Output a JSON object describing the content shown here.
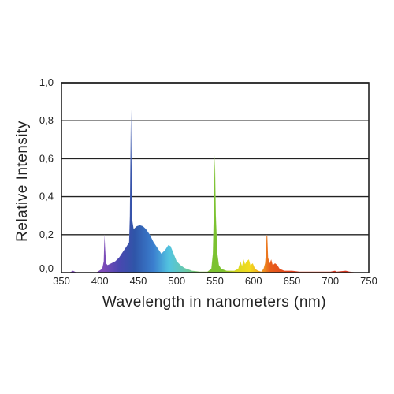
{
  "chart_data": {
    "type": "area",
    "title": "",
    "xlabel": "Wavelength in nanometers (nm)",
    "ylabel": "Relative  Intensity",
    "xlim": [
      350,
      750
    ],
    "ylim": [
      0,
      1.0
    ],
    "x_ticks": [
      "350",
      "400",
      "450",
      "500",
      "550",
      "600",
      "650",
      "700",
      "750"
    ],
    "y_ticks": [
      "0,0",
      "0,2",
      "0,4",
      "0,6",
      "0,8",
      "1,0"
    ],
    "grid": "horizontal",
    "legend": "none",
    "colors": {
      "violet": "#7d4bb8",
      "blue": "#2f55a8",
      "cyan": "#52c4e0",
      "green": "#7cc230",
      "yellow": "#f3dc1e",
      "orange": "#e85d1a",
      "grid": "#222222"
    },
    "series": [
      {
        "values": [
          [
            350,
            0
          ],
          [
            360,
            0
          ],
          [
            365,
            0.01
          ],
          [
            370,
            0
          ],
          [
            395,
            0
          ],
          [
            403,
            0.02
          ],
          [
            405,
            0.06
          ],
          [
            406,
            0.2
          ],
          [
            407,
            0.12
          ],
          [
            408,
            0.05
          ],
          [
            410,
            0.04
          ],
          [
            415,
            0.05
          ],
          [
            420,
            0.06
          ],
          [
            425,
            0.08
          ],
          [
            430,
            0.11
          ],
          [
            435,
            0.14
          ],
          [
            438,
            0.16
          ],
          [
            439,
            0.3
          ],
          [
            440,
            0.7
          ],
          [
            440.5,
            0.86
          ],
          [
            441,
            0.65
          ],
          [
            442,
            0.28
          ],
          [
            444,
            0.23
          ],
          [
            448,
            0.245
          ],
          [
            452,
            0.25
          ],
          [
            456,
            0.245
          ],
          [
            460,
            0.23
          ],
          [
            465,
            0.2
          ],
          [
            470,
            0.16
          ],
          [
            475,
            0.13
          ],
          [
            480,
            0.1
          ],
          [
            485,
            0.12
          ],
          [
            489,
            0.145
          ],
          [
            492,
            0.14
          ],
          [
            496,
            0.1
          ],
          [
            500,
            0.06
          ],
          [
            505,
            0.04
          ],
          [
            510,
            0.025
          ],
          [
            520,
            0.01
          ],
          [
            530,
            0.005
          ],
          [
            540,
            0.005
          ],
          [
            545,
            0.02
          ],
          [
            547,
            0.1
          ],
          [
            548.5,
            0.36
          ],
          [
            549,
            0.5
          ],
          [
            549.5,
            0.62
          ],
          [
            550,
            0.55
          ],
          [
            551,
            0.3
          ],
          [
            553,
            0.1
          ],
          [
            555,
            0.04
          ],
          [
            558,
            0.02
          ],
          [
            565,
            0.01
          ],
          [
            575,
            0.01
          ],
          [
            580,
            0.02
          ],
          [
            583,
            0.06
          ],
          [
            585,
            0.035
          ],
          [
            587,
            0.07
          ],
          [
            589,
            0.045
          ],
          [
            591,
            0.06
          ],
          [
            594,
            0.07
          ],
          [
            596,
            0.04
          ],
          [
            599,
            0.05
          ],
          [
            602,
            0.02
          ],
          [
            606,
            0.01
          ],
          [
            610,
            0.005
          ],
          [
            613,
            0.02
          ],
          [
            615,
            0.05
          ],
          [
            616,
            0.1
          ],
          [
            617,
            0.2
          ],
          [
            618,
            0.19
          ],
          [
            619,
            0.08
          ],
          [
            621,
            0.05
          ],
          [
            623,
            0.07
          ],
          [
            625,
            0.04
          ],
          [
            628,
            0.05
          ],
          [
            631,
            0.04
          ],
          [
            634,
            0.02
          ],
          [
            640,
            0.01
          ],
          [
            645,
            0.01
          ],
          [
            650,
            0.01
          ],
          [
            660,
            0.005
          ],
          [
            680,
            0.005
          ],
          [
            700,
            0.005
          ],
          [
            706,
            0.01
          ],
          [
            708,
            0.005
          ],
          [
            720,
            0.01
          ],
          [
            725,
            0.005
          ],
          [
            735,
            0
          ],
          [
            750,
            0
          ]
        ]
      }
    ]
  }
}
